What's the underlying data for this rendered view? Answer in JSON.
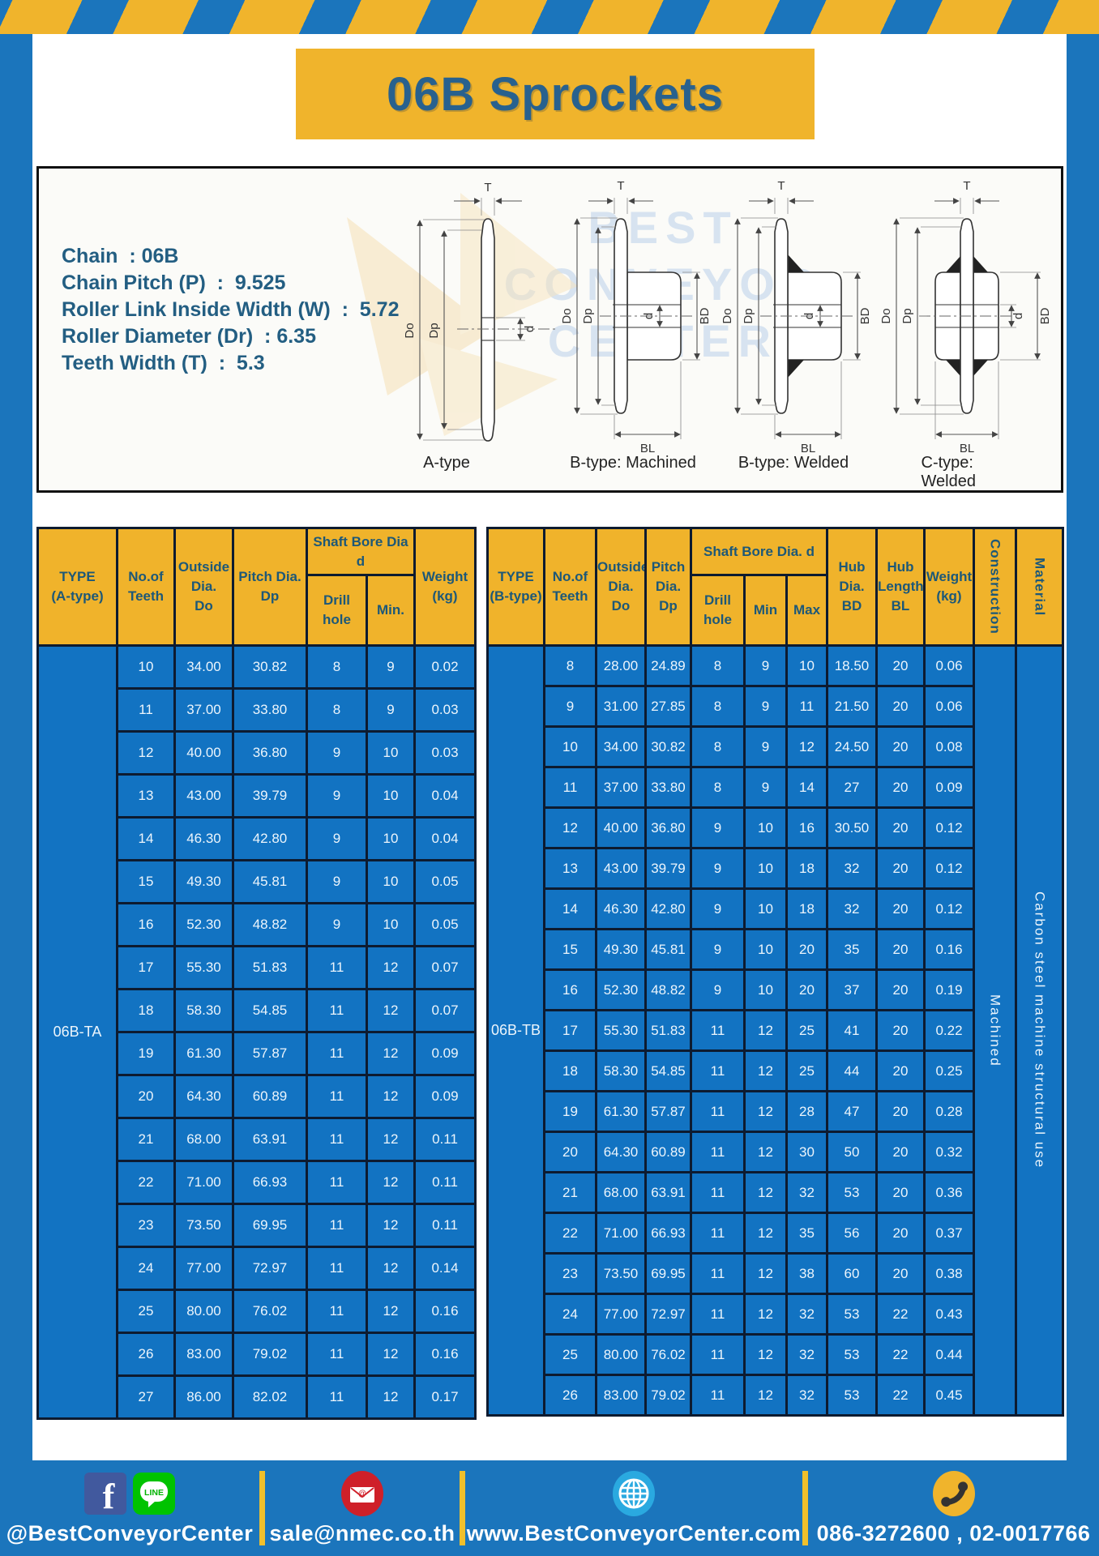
{
  "title": "06B Sprockets",
  "specs": [
    "Chain  : 06B",
    "Chain Pitch (P)  :  9.525",
    "Roller Link Inside Width (W)  :  5.72",
    "Roller Diameter (Dr)  : 6.35",
    "Teeth Width (T)  :  5.3"
  ],
  "diagram": {
    "watermark": [
      "BEST",
      "CONVEYOR",
      "CENTER"
    ],
    "type_labels": [
      "A-type",
      "B-type: Machined",
      "B-type: Welded",
      "C-type: Welded"
    ],
    "dims": {
      "t": "T",
      "do": "Do",
      "dp": "Dp",
      "d": "d",
      "bd": "BD",
      "bl": "BL"
    }
  },
  "table_a": {
    "headers": {
      "type": "TYPE\n(A-type)",
      "teeth": "No.of\nTeeth",
      "outside": "Outside\nDia.\nDo",
      "pitch": "Pitch Dia.\nDp",
      "shaft_bore": "Shaft Bore Dia d",
      "drill": "Drill hole",
      "min": "Min.",
      "weight": "Weight\n(kg)"
    },
    "type_label": "06B-TA",
    "rows": [
      [
        "10",
        "34.00",
        "30.82",
        "8",
        "9",
        "0.02"
      ],
      [
        "11",
        "37.00",
        "33.80",
        "8",
        "9",
        "0.03"
      ],
      [
        "12",
        "40.00",
        "36.80",
        "9",
        "10",
        "0.03"
      ],
      [
        "13",
        "43.00",
        "39.79",
        "9",
        "10",
        "0.04"
      ],
      [
        "14",
        "46.30",
        "42.80",
        "9",
        "10",
        "0.04"
      ],
      [
        "15",
        "49.30",
        "45.81",
        "9",
        "10",
        "0.05"
      ],
      [
        "16",
        "52.30",
        "48.82",
        "9",
        "10",
        "0.05"
      ],
      [
        "17",
        "55.30",
        "51.83",
        "11",
        "12",
        "0.07"
      ],
      [
        "18",
        "58.30",
        "54.85",
        "11",
        "12",
        "0.07"
      ],
      [
        "19",
        "61.30",
        "57.87",
        "11",
        "12",
        "0.09"
      ],
      [
        "20",
        "64.30",
        "60.89",
        "11",
        "12",
        "0.09"
      ],
      [
        "21",
        "68.00",
        "63.91",
        "11",
        "12",
        "0.11"
      ],
      [
        "22",
        "71.00",
        "66.93",
        "11",
        "12",
        "0.11"
      ],
      [
        "23",
        "73.50",
        "69.95",
        "11",
        "12",
        "0.11"
      ],
      [
        "24",
        "77.00",
        "72.97",
        "11",
        "12",
        "0.14"
      ],
      [
        "25",
        "80.00",
        "76.02",
        "11",
        "12",
        "0.16"
      ],
      [
        "26",
        "83.00",
        "79.02",
        "11",
        "12",
        "0.16"
      ],
      [
        "27",
        "86.00",
        "82.02",
        "11",
        "12",
        "0.17"
      ]
    ]
  },
  "table_b": {
    "headers": {
      "type": "TYPE\n(B-type)",
      "teeth": "No.of\nTeeth",
      "outside": "Outside\nDia.\nDo",
      "pitch": "Pitch\nDia.\nDp",
      "shaft_bore": "Shaft Bore Dia.  d",
      "drill": "Drill hole",
      "min": "Min",
      "max": "Max",
      "hub_dia": "Hub\nDia.\nBD",
      "hub_len": "Hub\nLength\nBL",
      "weight": "Weight\n(kg)",
      "construction": "Construction",
      "material": "Material"
    },
    "type_label": "06B-TB",
    "construction": "Machined",
    "material": "Carbon  steel  machine  structural  use",
    "rows": [
      [
        "8",
        "28.00",
        "24.89",
        "8",
        "9",
        "10",
        "18.50",
        "20",
        "0.06"
      ],
      [
        "9",
        "31.00",
        "27.85",
        "8",
        "9",
        "11",
        "21.50",
        "20",
        "0.06"
      ],
      [
        "10",
        "34.00",
        "30.82",
        "8",
        "9",
        "12",
        "24.50",
        "20",
        "0.08"
      ],
      [
        "11",
        "37.00",
        "33.80",
        "8",
        "9",
        "14",
        "27",
        "20",
        "0.09"
      ],
      [
        "12",
        "40.00",
        "36.80",
        "9",
        "10",
        "16",
        "30.50",
        "20",
        "0.12"
      ],
      [
        "13",
        "43.00",
        "39.79",
        "9",
        "10",
        "18",
        "32",
        "20",
        "0.12"
      ],
      [
        "14",
        "46.30",
        "42.80",
        "9",
        "10",
        "18",
        "32",
        "20",
        "0.12"
      ],
      [
        "15",
        "49.30",
        "45.81",
        "9",
        "10",
        "20",
        "35",
        "20",
        "0.16"
      ],
      [
        "16",
        "52.30",
        "48.82",
        "9",
        "10",
        "20",
        "37",
        "20",
        "0.19"
      ],
      [
        "17",
        "55.30",
        "51.83",
        "11",
        "12",
        "25",
        "41",
        "20",
        "0.22"
      ],
      [
        "18",
        "58.30",
        "54.85",
        "11",
        "12",
        "25",
        "44",
        "20",
        "0.25"
      ],
      [
        "19",
        "61.30",
        "57.87",
        "11",
        "12",
        "28",
        "47",
        "20",
        "0.28"
      ],
      [
        "20",
        "64.30",
        "60.89",
        "11",
        "12",
        "30",
        "50",
        "20",
        "0.32"
      ],
      [
        "21",
        "68.00",
        "63.91",
        "11",
        "12",
        "32",
        "53",
        "20",
        "0.36"
      ],
      [
        "22",
        "71.00",
        "66.93",
        "11",
        "12",
        "35",
        "56",
        "20",
        "0.37"
      ],
      [
        "23",
        "73.50",
        "69.95",
        "11",
        "12",
        "38",
        "60",
        "20",
        "0.38"
      ],
      [
        "24",
        "77.00",
        "72.97",
        "11",
        "12",
        "32",
        "53",
        "22",
        "0.43"
      ],
      [
        "25",
        "80.00",
        "76.02",
        "11",
        "12",
        "32",
        "53",
        "22",
        "0.44"
      ],
      [
        "26",
        "83.00",
        "79.02",
        "11",
        "12",
        "32",
        "53",
        "22",
        "0.45"
      ]
    ]
  },
  "footer": {
    "social_text": "@BestConveyorCenter",
    "line_label": "LINE",
    "email": "sale@nmec.co.th",
    "website": "www.BestConveyorCenter.com",
    "phones": "086-3272600 , 02-0017766"
  },
  "colors": {
    "frame_blue": "#1b75bc",
    "accent_yellow": "#f0b42c",
    "cell_blue": "#1273c2",
    "header_yellow": "#f0b32b",
    "dark_text": "#235e82",
    "grid_border": "#0d1b30"
  }
}
